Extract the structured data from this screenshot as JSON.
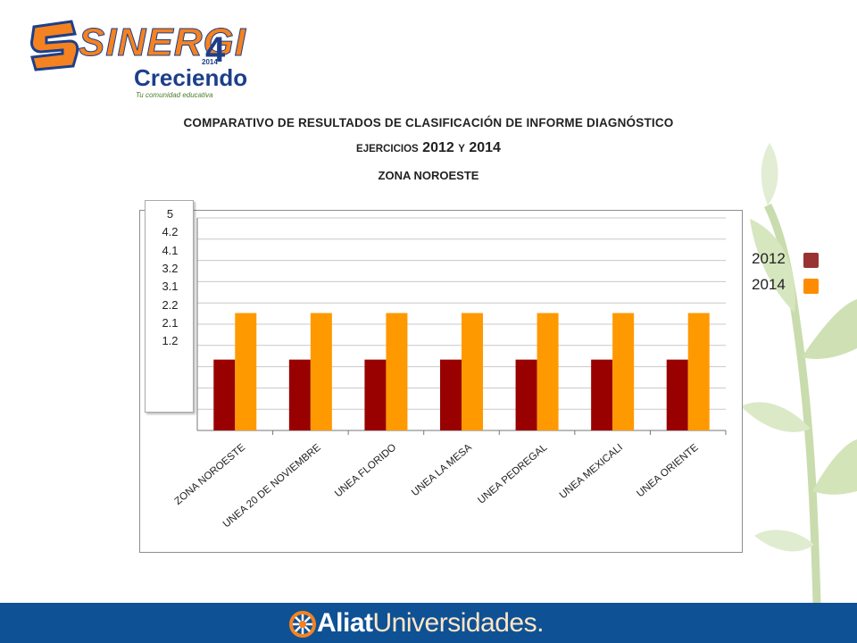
{
  "logo": {
    "brand": "SINERGI",
    "brand_number": "4",
    "year": "2014",
    "subtitle": "Creciendo",
    "tagline": "Tu comunidad educativa"
  },
  "title": {
    "line1": "COMPARATIVO DE RESULTADOS DE CLASIFICACIÓN DE INFORME DIAGNÓSTICO",
    "line2_word1": "EJERCICIOS",
    "line2_year1": "2012",
    "line2_connector": "Y",
    "line2_year2": "2014",
    "line3": "ZONA NOROESTE"
  },
  "value_box": [
    "5",
    "4.2",
    "4.1",
    "3.2",
    "3.1",
    "2.2",
    "2.1",
    "1.2"
  ],
  "chart_data": {
    "type": "bar",
    "categories": [
      "ZONA NOROESTE",
      "UNEA 20 DE NOVIEMBRE",
      "UNEA FLORIDO",
      "UNEA LA MESA",
      "UNEA PEDREGAL",
      "UNEA MEXICALI",
      "UNEA ORIENTE"
    ],
    "series": [
      {
        "name": "2012",
        "color": "#990000",
        "values": [
          3.5,
          3.5,
          3.5,
          3.5,
          3.5,
          3.5,
          3.5
        ]
      },
      {
        "name": "2014",
        "color": "#ff9900",
        "values": [
          5.8,
          5.8,
          5.8,
          5.8,
          5.8,
          5.8,
          5.8
        ]
      }
    ],
    "ylim": [
      0,
      10.5
    ],
    "gridlines": 10,
    "grid": true,
    "legend_position": "right"
  },
  "legend": [
    {
      "label": "2012",
      "color": "#993333"
    },
    {
      "label": "2014",
      "color": "#ff8c00"
    }
  ],
  "footer": {
    "brand_part1": "Aliat",
    "brand_part2": "Universidades.",
    "background": "#0e5195"
  }
}
